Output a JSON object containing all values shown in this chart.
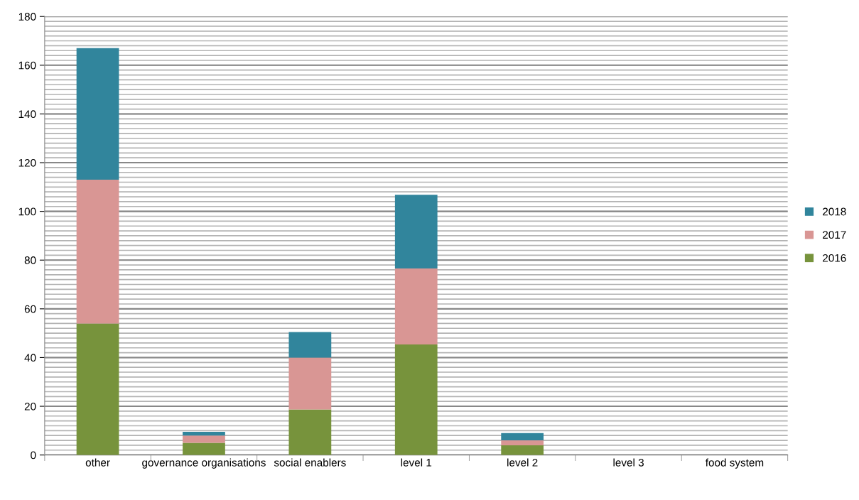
{
  "chart_data": {
    "type": "bar",
    "stacked": true,
    "categories": [
      "other",
      "governance organisations",
      "social enablers",
      "level 1",
      "level 2",
      "level 3",
      "food system"
    ],
    "series": [
      {
        "name": "2016",
        "color": "#77933c",
        "values": [
          54,
          5,
          18.7,
          45.4,
          4,
          0,
          0
        ]
      },
      {
        "name": "2017",
        "color": "#d99694",
        "values": [
          59,
          3,
          21.3,
          31.2,
          2,
          0,
          0
        ]
      },
      {
        "name": "2018",
        "color": "#31859c",
        "values": [
          54,
          1.5,
          10.5,
          30.2,
          3,
          0,
          0
        ]
      }
    ],
    "ylim": [
      0,
      180
    ],
    "yticks": [
      0,
      20,
      40,
      60,
      80,
      100,
      120,
      140,
      160,
      180
    ],
    "grid": "y",
    "legend": "right"
  }
}
